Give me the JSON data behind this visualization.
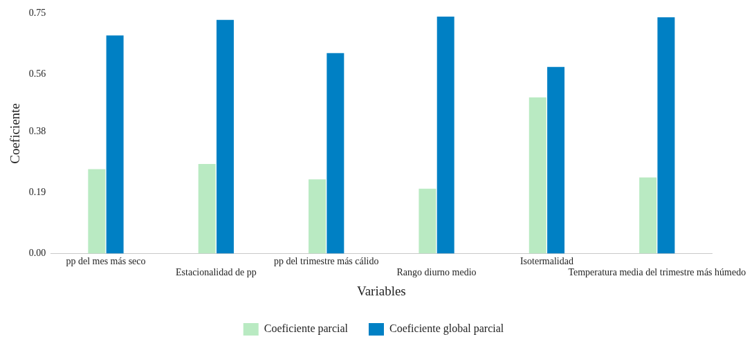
{
  "chart_data": {
    "type": "bar",
    "xlabel": "Variables",
    "ylabel": "Coeficiente",
    "categories": [
      "pp del mes más seco",
      "Estacionalidad de pp",
      "pp del trimestre más cálido",
      "Rango diurno medio",
      "Isotermalidad",
      "Temperatura media del trimestre más húmedo"
    ],
    "series": [
      {
        "name": "Coeficiente parcial",
        "color": "#b9eac2",
        "values": [
          0.264,
          0.28,
          0.232,
          0.203,
          0.488,
          0.238
        ]
      },
      {
        "name": "Coeficiente global parcial",
        "color": "#0080c4",
        "values": [
          0.681,
          0.73,
          0.626,
          0.74,
          0.583,
          0.738
        ]
      }
    ],
    "ylim": [
      0,
      0.75
    ],
    "yticks": [
      {
        "value": 0,
        "label": "0.00"
      },
      0.19,
      0.38,
      0.56,
      0.75
    ],
    "grid": false,
    "legend": "bottom"
  }
}
